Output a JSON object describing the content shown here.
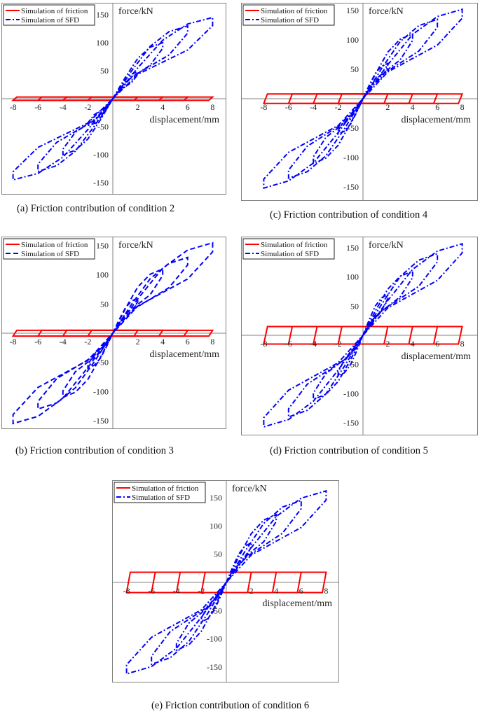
{
  "legend": {
    "friction": "Simulation of friction",
    "sfd": "Simulation of SFD"
  },
  "colors": {
    "friction": "#ff0000",
    "sfd": "#0000ff",
    "axis": "#808080"
  },
  "chart_data": [
    {
      "id": "a",
      "type": "line",
      "caption": "(a) Friction contribution of condition 2",
      "xlabel": "displacement/mm",
      "ylabel": "force/kN",
      "xticks": [
        -8,
        -6,
        -4,
        -2,
        2,
        4,
        6,
        8
      ],
      "yticks": [
        -150,
        -100,
        -50,
        50,
        100,
        150
      ],
      "xlim": [
        -9,
        9
      ],
      "ylim": [
        -170,
        170
      ],
      "amplitudes_mm": [
        2,
        4,
        6,
        8
      ],
      "sfd_peak_force_kN": [
        48,
        100,
        130,
        145
      ],
      "friction_force_kN": 3,
      "sfd_line_style": "dash-dot"
    },
    {
      "id": "c",
      "type": "line",
      "caption": "(c) Friction contribution of condition 4",
      "xlabel": "displacement/mm",
      "ylabel": "force/kN",
      "xticks": [
        -8,
        -6,
        -4,
        -2,
        2,
        4,
        6,
        8
      ],
      "yticks": [
        -150,
        -100,
        -50,
        50,
        100,
        150
      ],
      "xlim": [
        -9,
        9
      ],
      "ylim": [
        -170,
        170
      ],
      "amplitudes_mm": [
        2,
        4,
        6,
        8
      ],
      "sfd_peak_force_kN": [
        60,
        110,
        135,
        152
      ],
      "friction_force_kN": 8,
      "sfd_line_style": "dash-dot"
    },
    {
      "id": "b",
      "type": "line",
      "caption": "(b) Friction contribution of condition 3",
      "xlabel": "displacement/mm",
      "ylabel": "force/kN",
      "xticks": [
        -8,
        -6,
        -4,
        -2,
        2,
        4,
        6,
        8
      ],
      "yticks": [
        -150,
        -100,
        -50,
        50,
        100,
        150
      ],
      "xlim": [
        -9,
        9
      ],
      "ylim": [
        -170,
        170
      ],
      "amplitudes_mm": [
        2,
        4,
        6,
        8
      ],
      "sfd_peak_force_kN": [
        60,
        110,
        130,
        155
      ],
      "friction_force_kN": 5,
      "sfd_line_style": "dashed"
    },
    {
      "id": "d",
      "type": "line",
      "caption": "(d) Friction contribution of condition 5",
      "xlabel": "displacement/mm",
      "ylabel": "force/kN",
      "xticks": [
        -8,
        -6,
        -4,
        -2,
        2,
        4,
        6,
        8
      ],
      "yticks": [
        -150,
        -100,
        -50,
        50,
        100,
        150
      ],
      "xlim": [
        -9,
        9
      ],
      "ylim": [
        -170,
        170
      ],
      "amplitudes_mm": [
        2,
        4,
        6,
        8
      ],
      "sfd_peak_force_kN": [
        70,
        110,
        140,
        157
      ],
      "friction_force_kN": 15,
      "sfd_line_style": "dash-dot"
    },
    {
      "id": "e",
      "type": "line",
      "caption": "(e) Friction contribution of condition 6",
      "xlabel": "displacement/mm",
      "ylabel": "force/kN",
      "xticks": [
        -8,
        -6,
        -4,
        -2,
        2,
        4,
        6,
        8
      ],
      "yticks": [
        -150,
        -100,
        -50,
        50,
        100,
        150
      ],
      "xlim": [
        -9,
        9
      ],
      "ylim": [
        -170,
        170
      ],
      "amplitudes_mm": [
        2,
        4,
        6,
        8
      ],
      "sfd_peak_force_kN": [
        70,
        120,
        145,
        162
      ],
      "friction_force_kN": 18,
      "sfd_line_style": "dash-dot"
    }
  ]
}
